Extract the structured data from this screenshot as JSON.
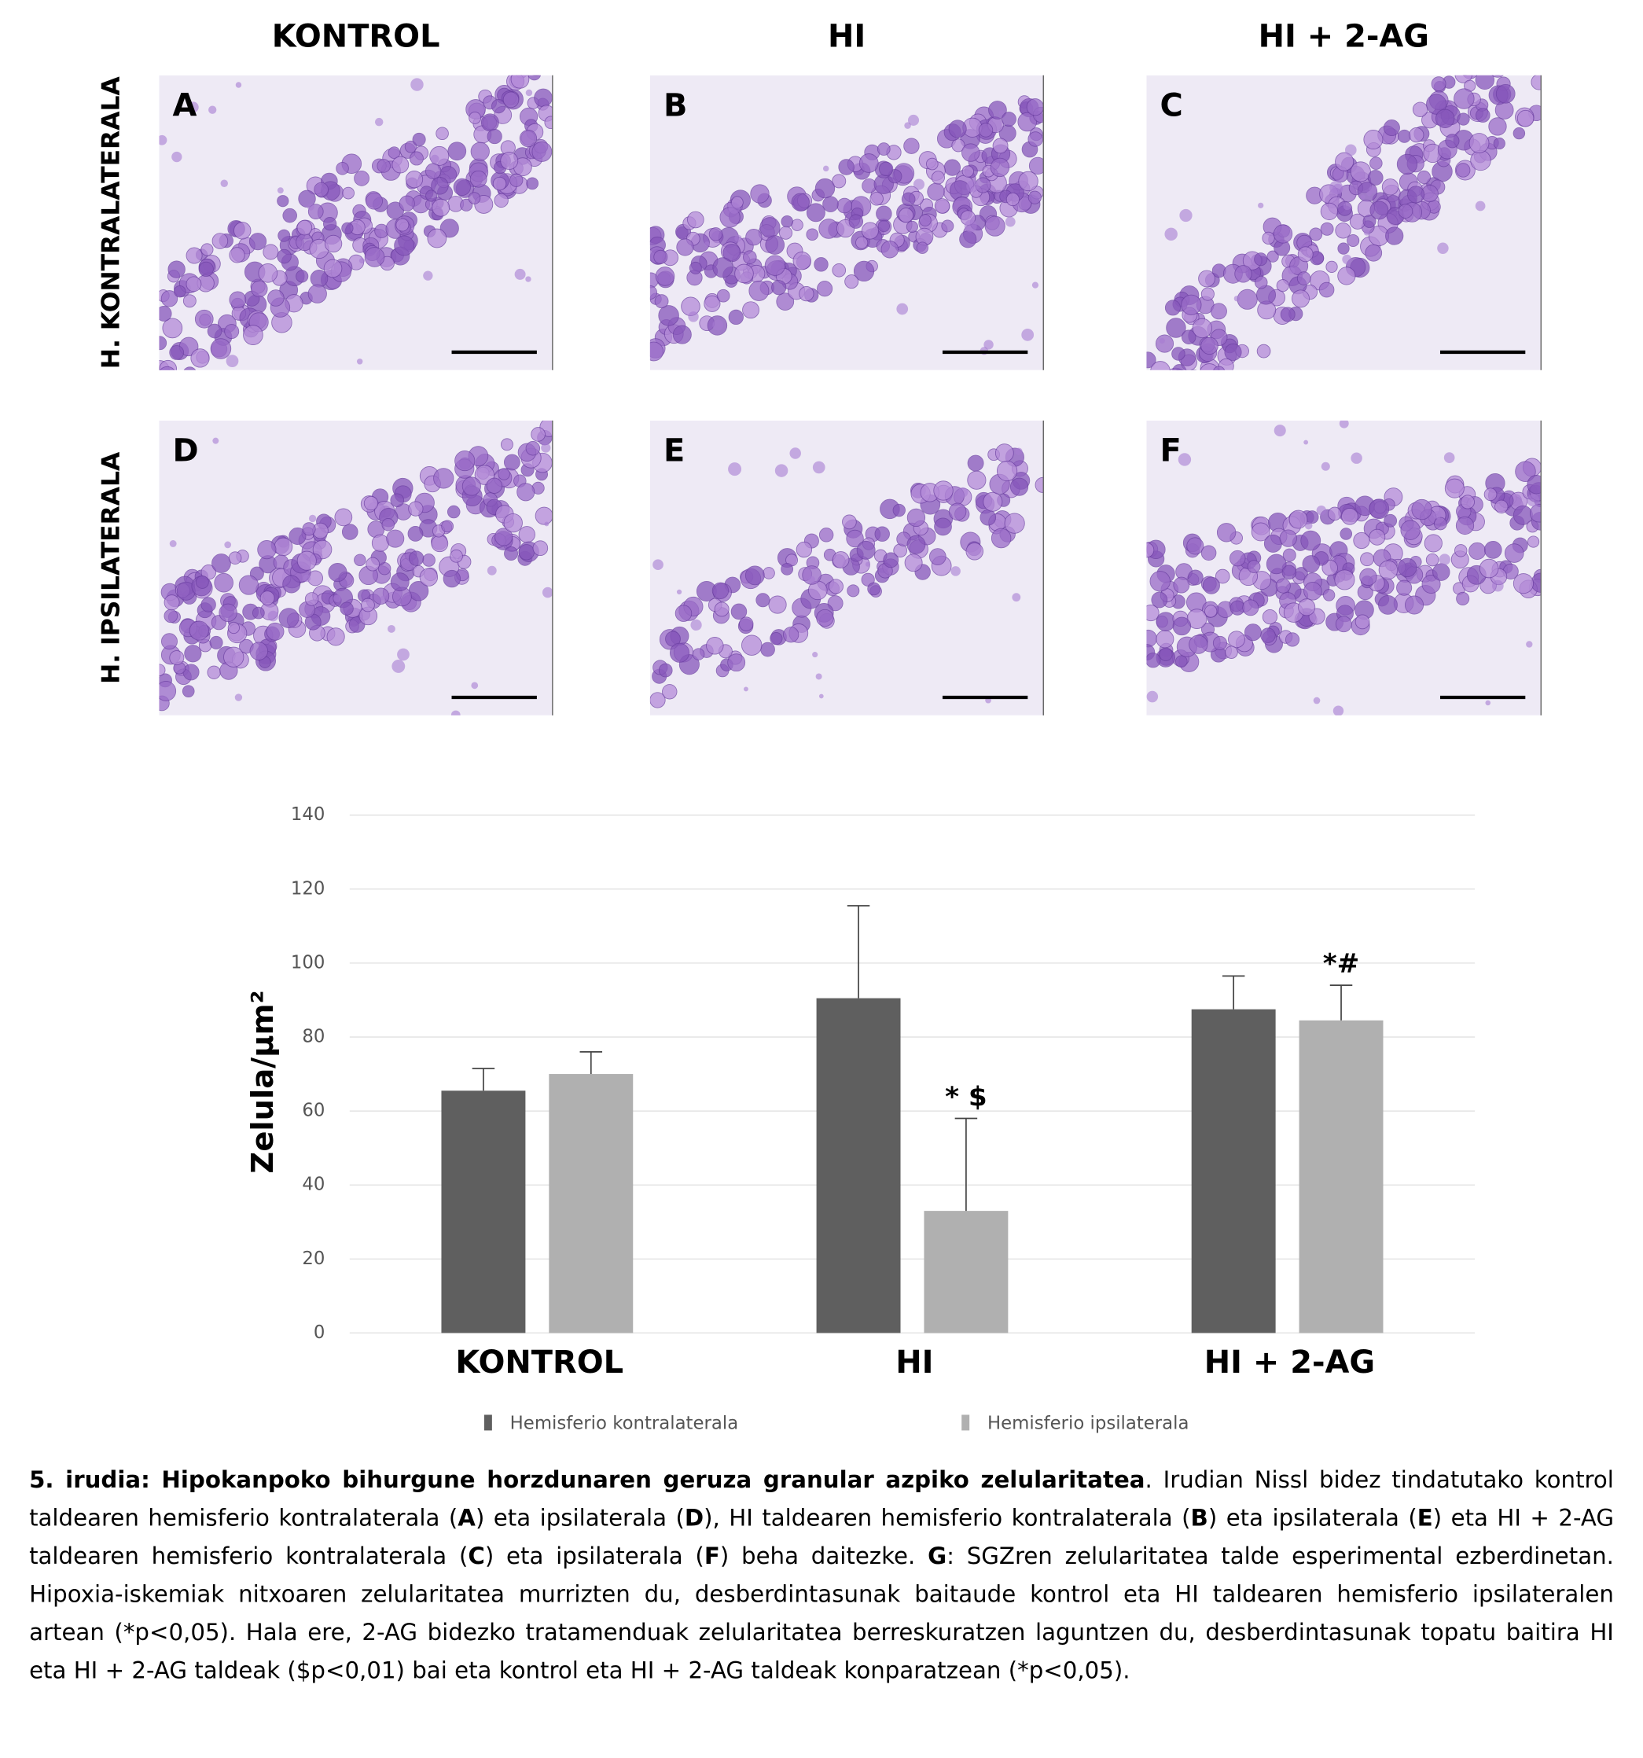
{
  "figure": {
    "column_headers": [
      "KONTROL",
      "HI",
      "HI + 2-AG"
    ],
    "row_labels": [
      "H. KONTRALATERALA",
      "H. IPSILATERALA"
    ],
    "panels": [
      "A",
      "B",
      "C",
      "D",
      "E",
      "F"
    ]
  },
  "chart_data": {
    "type": "bar",
    "y_label": "Zelula/µm²",
    "categories": [
      "KONTROL",
      "HI",
      "HI + 2-AG"
    ],
    "series": [
      {
        "name": "Hemisferio kontralaterala",
        "color": "#5f5f5f",
        "values": [
          65.5,
          90.5,
          87.5
        ],
        "errors": [
          6,
          25,
          9
        ]
      },
      {
        "name": "Hemisferio ipsilaterala",
        "color": "#b0b0b0",
        "values": [
          70,
          33,
          84.5
        ],
        "errors": [
          6,
          25,
          9.5
        ],
        "annotations": [
          null,
          "* $",
          "*#"
        ]
      }
    ],
    "ylim": [
      0,
      140
    ],
    "yticks": [
      0,
      20,
      40,
      60,
      80,
      100,
      120,
      140
    ],
    "grid": true,
    "legend": "bottom"
  },
  "caption": [
    {
      "text": "5. irudia: Hipokanpoko bihurgune horzdunaren geruza granular azpiko zelularitatea",
      "bold": true
    },
    {
      "text": ". Irudian Nissl bidez tindatutako kontrol taldearen hemisferio kontralaterala ("
    },
    {
      "text": "A",
      "bold": true
    },
    {
      "text": ") eta ipsilaterala ("
    },
    {
      "text": "D",
      "bold": true
    },
    {
      "text": "), HI taldearen hemisferio kontralaterala ("
    },
    {
      "text": "B",
      "bold": true
    },
    {
      "text": ") eta ipsilaterala ("
    },
    {
      "text": "E",
      "bold": true
    },
    {
      "text": ") eta HI + 2-AG taldearen hemisferio kontralaterala ("
    },
    {
      "text": "C",
      "bold": true
    },
    {
      "text": ") eta ipsilaterala ("
    },
    {
      "text": "F",
      "bold": true
    },
    {
      "text": ") beha daitezke. "
    },
    {
      "text": "G",
      "bold": true
    },
    {
      "text": ": SGZren zelularitatea talde esperimental ezberdinetan. Hipoxia-iskemiak nitxoaren zelularitatea murrizten du, desberdintasunak baitaude kontrol eta HI taldearen hemisferio ipsilateralen artean (*p<0,05). Hala ere, 2-AG bidezko tratamenduak zelularitatea berreskuratzen laguntzen du, desberdintasunak topatu baitira HI eta HI + 2-AG taldeak ($p<0,01) bai eta kontrol eta HI + 2-AG taldeak konparatzean (*p<0,05)."
    }
  ]
}
